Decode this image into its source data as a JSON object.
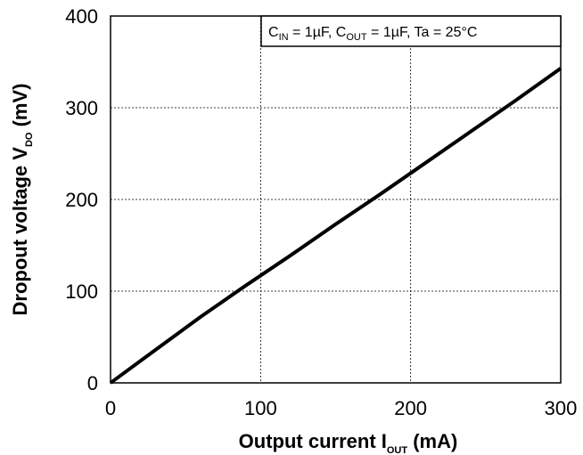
{
  "chart_data": {
    "type": "line",
    "xlabel": {
      "main": "Output current  I",
      "sub": "OUT",
      "unit": " (mA)"
    },
    "ylabel": {
      "main": "Dropout voltage  V",
      "sub": "DO",
      "unit": " (mV)"
    },
    "xlim": [
      0,
      300
    ],
    "ylim": [
      0,
      400
    ],
    "xticks": [
      "0",
      "100",
      "200",
      "300"
    ],
    "yticks": [
      "0",
      "100",
      "200",
      "300",
      "400"
    ],
    "grid": true,
    "annotation": {
      "parts": [
        {
          "text": "C",
          "sub": "IN"
        },
        {
          "text": " = 1µF, C",
          "sub": "OUT"
        },
        {
          "text": " = 1µF, Ta = 25°C",
          "sub": ""
        }
      ],
      "placement": "top-right"
    },
    "series": [
      {
        "x": [
          0,
          30,
          60,
          90,
          120,
          150,
          180,
          210,
          240,
          270,
          300
        ],
        "values": [
          0,
          36,
          72,
          106,
          139,
          173,
          206,
          240,
          274,
          308,
          343
        ]
      }
    ]
  }
}
